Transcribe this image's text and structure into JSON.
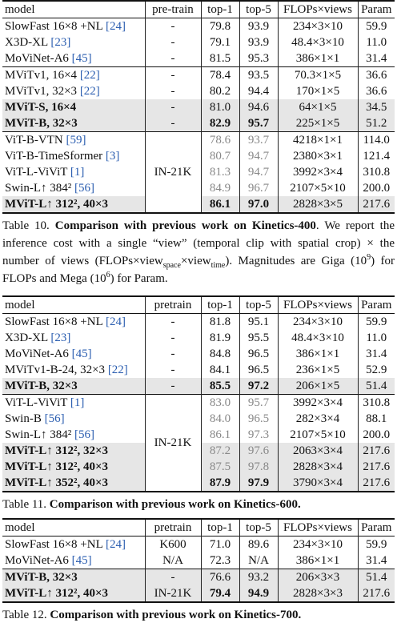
{
  "tables": [
    {
      "header": [
        "model",
        "pre-train",
        "top-1",
        "top-5",
        "FLOPs×views",
        "Param"
      ],
      "groups": [
        {
          "rows": [
            {
              "model": "SlowFast 16×8 +NL",
              "ref": "[24]",
              "cells": [
                "-",
                "79.8",
                "93.9",
                "234×3×10",
                "59.9"
              ]
            },
            {
              "model": "X3D-XL",
              "ref": "[23]",
              "cells": [
                "-",
                "79.1",
                "93.9",
                "48.4×3×10",
                "11.0"
              ]
            },
            {
              "model": "MoViNet-A6",
              "ref": "[45]",
              "cells": [
                "-",
                "81.5",
                "95.3",
                "386×1×1",
                "31.4"
              ]
            }
          ]
        },
        {
          "rows": [
            {
              "model": "MViTv1, 16×4",
              "ref": "[22]",
              "cells": [
                "-",
                "78.4",
                "93.5",
                "70.3×1×5",
                "36.6"
              ]
            },
            {
              "model": "MViTv1, 32×3",
              "ref": "[22]",
              "cells": [
                "-",
                "80.2",
                "94.4",
                "170×1×5",
                "36.6"
              ]
            },
            {
              "model": "MViT-S, 16×4",
              "cells": [
                "-",
                "81.0",
                "94.6",
                "64×1×5",
                "34.5"
              ],
              "highlight": true
            },
            {
              "model": "MViT-B, 32×3",
              "cells": [
                "-",
                "82.9",
                "95.7",
                "225×1×5",
                "51.2"
              ],
              "highlight": true,
              "bold": [
                1,
                2
              ]
            }
          ]
        },
        {
          "pretrain": "IN-21K",
          "rows": [
            {
              "model": "ViT-B-VTN",
              "ref": "[59]",
              "cells": [
                "78.6",
                "93.7",
                "4218×1×1",
                "114.0"
              ]
            },
            {
              "model": "ViT-B-TimeSformer",
              "ref": "[3]",
              "cells": [
                "80.7",
                "94.7",
                "2380×3×1",
                "121.4"
              ]
            },
            {
              "model": "ViT-L-ViViT",
              "ref": "[1]",
              "cells": [
                "81.3",
                "94.7",
                "3992×3×4",
                "310.8"
              ]
            },
            {
              "model": "Swin-L↑ 384²",
              "ref": "[56]",
              "cells": [
                "84.9",
                "96.7",
                "2107×5×10",
                "200.0"
              ]
            },
            {
              "model": "MViT-L↑ 312², 40×3",
              "cells": [
                "86.1",
                "97.0",
                "2828×3×5",
                "217.6"
              ],
              "highlight": true,
              "bold": [
                0,
                1
              ]
            }
          ]
        }
      ],
      "caption": {
        "label": "Table 10.",
        "title": "Comparison with previous work on Kinetics-400",
        "body": [
          ". We report the inference cost with a single “view” (temporal clip with spatial crop) × the number of views (FLOPs×view",
          "space",
          "×view",
          "time",
          "). Magnitudes are Giga (10",
          "9",
          ") for FLOPs and Mega (10",
          "6",
          ") for Param."
        ]
      }
    },
    {
      "header": [
        "model",
        "pretrain",
        "top-1",
        "top-5",
        "FLOPs×views",
        "Param"
      ],
      "groups": [
        {
          "rows": [
            {
              "model": "SlowFast 16×8 +NL",
              "ref": "[24]",
              "cells": [
                "-",
                "81.8",
                "95.1",
                "234×3×10",
                "59.9"
              ]
            },
            {
              "model": "X3D-XL",
              "ref": "[23]",
              "cells": [
                "-",
                "81.9",
                "95.5",
                "48.4×3×10",
                "11.0"
              ]
            },
            {
              "model": "MoViNet-A6",
              "ref": "[45]",
              "cells": [
                "-",
                "84.8",
                "96.5",
                "386×1×1",
                "31.4"
              ]
            },
            {
              "model": "MViTv1-B-24, 32×3",
              "ref": "[22]",
              "cells": [
                "-",
                "84.1",
                "96.5",
                "236×1×5",
                "52.9"
              ]
            },
            {
              "model": "MViT-B, 32×3",
              "cells": [
                "-",
                "85.5",
                "97.2",
                "206×1×5",
                "51.4"
              ],
              "highlight": true,
              "bold": [
                1,
                2
              ]
            }
          ]
        },
        {
          "pretrain": "IN-21K",
          "rows": [
            {
              "model": "ViT-L-ViViT",
              "ref": "[1]",
              "cells": [
                "83.0",
                "95.7",
                "3992×3×4",
                "310.8"
              ]
            },
            {
              "model": "Swin-B",
              "ref": "[56]",
              "cells": [
                "84.0",
                "96.5",
                "282×3×4",
                "88.1"
              ]
            },
            {
              "model": "Swin-L↑ 384²",
              "ref": "[56]",
              "cells": [
                "86.1",
                "97.3",
                "2107×5×10",
                "200.0"
              ]
            },
            {
              "model": "MViT-L↑ 312², 32×3",
              "cells": [
                "87.2",
                "97.6",
                "2063×3×4",
                "217.6"
              ],
              "highlight": true
            },
            {
              "model": "MViT-L↑ 312², 40×3",
              "cells": [
                "87.5",
                "97.8",
                "2828×3×4",
                "217.6"
              ],
              "highlight": true
            },
            {
              "model": "MViT-L↑ 352², 40×3",
              "cells": [
                "87.9",
                "97.9",
                "3790×3×4",
                "217.6"
              ],
              "highlight": true,
              "bold": [
                0,
                1
              ]
            }
          ]
        }
      ],
      "caption": {
        "label": "Table 11.",
        "title": "Comparison with previous work on Kinetics-600."
      }
    },
    {
      "header": [
        "model",
        "pretrain",
        "top-1",
        "top-5",
        "FLOPs×views",
        "Param"
      ],
      "groups": [
        {
          "rows": [
            {
              "model": "SlowFast 16×8 +NL",
              "ref": "[24]",
              "cells": [
                "K600",
                "71.0",
                "89.6",
                "234×3×10",
                "59.9"
              ]
            },
            {
              "model": "MoViNet-A6",
              "ref": "[45]",
              "cells": [
                "N/A",
                "72.3",
                "N/A",
                "386×1×1",
                "31.4"
              ]
            }
          ]
        },
        {
          "rows": [
            {
              "model": "MViT-B, 32×3",
              "cells": [
                "-",
                "76.6",
                "93.2",
                "206×3×3",
                "51.4"
              ],
              "highlight": true
            },
            {
              "model": "MViT-L↑ 312², 40×3",
              "cells": [
                "IN-21K",
                "79.4",
                "94.9",
                "2828×3×3",
                "217.6"
              ],
              "highlight": true,
              "bold": [
                1,
                2
              ]
            }
          ]
        }
      ],
      "caption": {
        "label": "Table 12.",
        "title": "Comparison with previous work on Kinetics-700."
      }
    }
  ]
}
